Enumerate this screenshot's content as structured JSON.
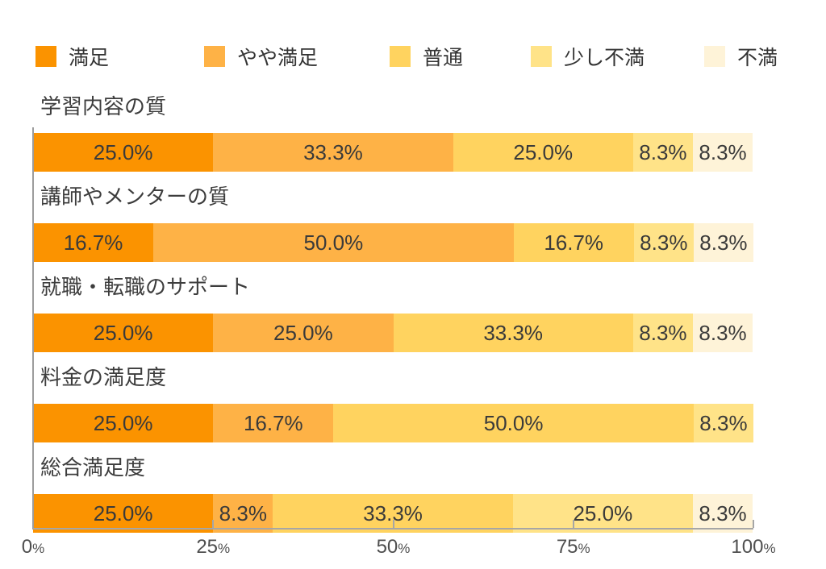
{
  "page": {
    "background": "#ffffff"
  },
  "chart_data": {
    "type": "bar",
    "variant": "horizontal-stacked-100",
    "title": "",
    "xlabel": "",
    "ylabel": "",
    "grid": false,
    "legend": {
      "position": "top",
      "entries": [
        "満足",
        "やや満足",
        "普通",
        "少し不満",
        "不満"
      ]
    },
    "colors": [
      "#fb9300",
      "#feb246",
      "#ffd35f",
      "#ffe388",
      "#fef3d8"
    ],
    "categories": [
      "学習内容の質",
      "講師やメンターの質",
      "就職・転職のサポート",
      "料金の満足度",
      "総合満足度"
    ],
    "series": [
      {
        "name": "満足",
        "values": [
          25.0,
          16.7,
          25.0,
          25.0,
          25.0
        ]
      },
      {
        "name": "やや満足",
        "values": [
          33.3,
          50.0,
          25.0,
          16.7,
          8.3
        ]
      },
      {
        "name": "普通",
        "values": [
          25.0,
          16.7,
          33.3,
          50.0,
          33.3
        ]
      },
      {
        "name": "少し不満",
        "values": [
          8.3,
          8.3,
          8.3,
          8.3,
          25.0
        ]
      },
      {
        "name": "不満",
        "values": [
          8.3,
          8.3,
          8.3,
          0,
          8.3
        ]
      }
    ],
    "segment_labels": [
      [
        "25.0%",
        "33.3%",
        "25.0%",
        "8.3%",
        "8.3%"
      ],
      [
        "16.7%",
        "50.0%",
        "16.7%",
        "8.3%",
        "8.3%"
      ],
      [
        "25.0%",
        "25.0%",
        "33.3%",
        "8.3%",
        "8.3%"
      ],
      [
        "25.0%",
        "16.7%",
        "50.0%",
        "8.3%",
        ""
      ],
      [
        "25.0%",
        "8.3%",
        "33.3%",
        "25.0%",
        "8.3%"
      ]
    ],
    "x_ticks": [
      0,
      25,
      50,
      75,
      100
    ],
    "x_tick_suffix": "%",
    "xlim": [
      0,
      100
    ],
    "text_colors": {
      "category": "#3d3d3d",
      "segment": "#3a3a3a",
      "tick": "#4f4f4f",
      "legend": "#333333"
    },
    "axis_color": "#a6a6a6"
  }
}
